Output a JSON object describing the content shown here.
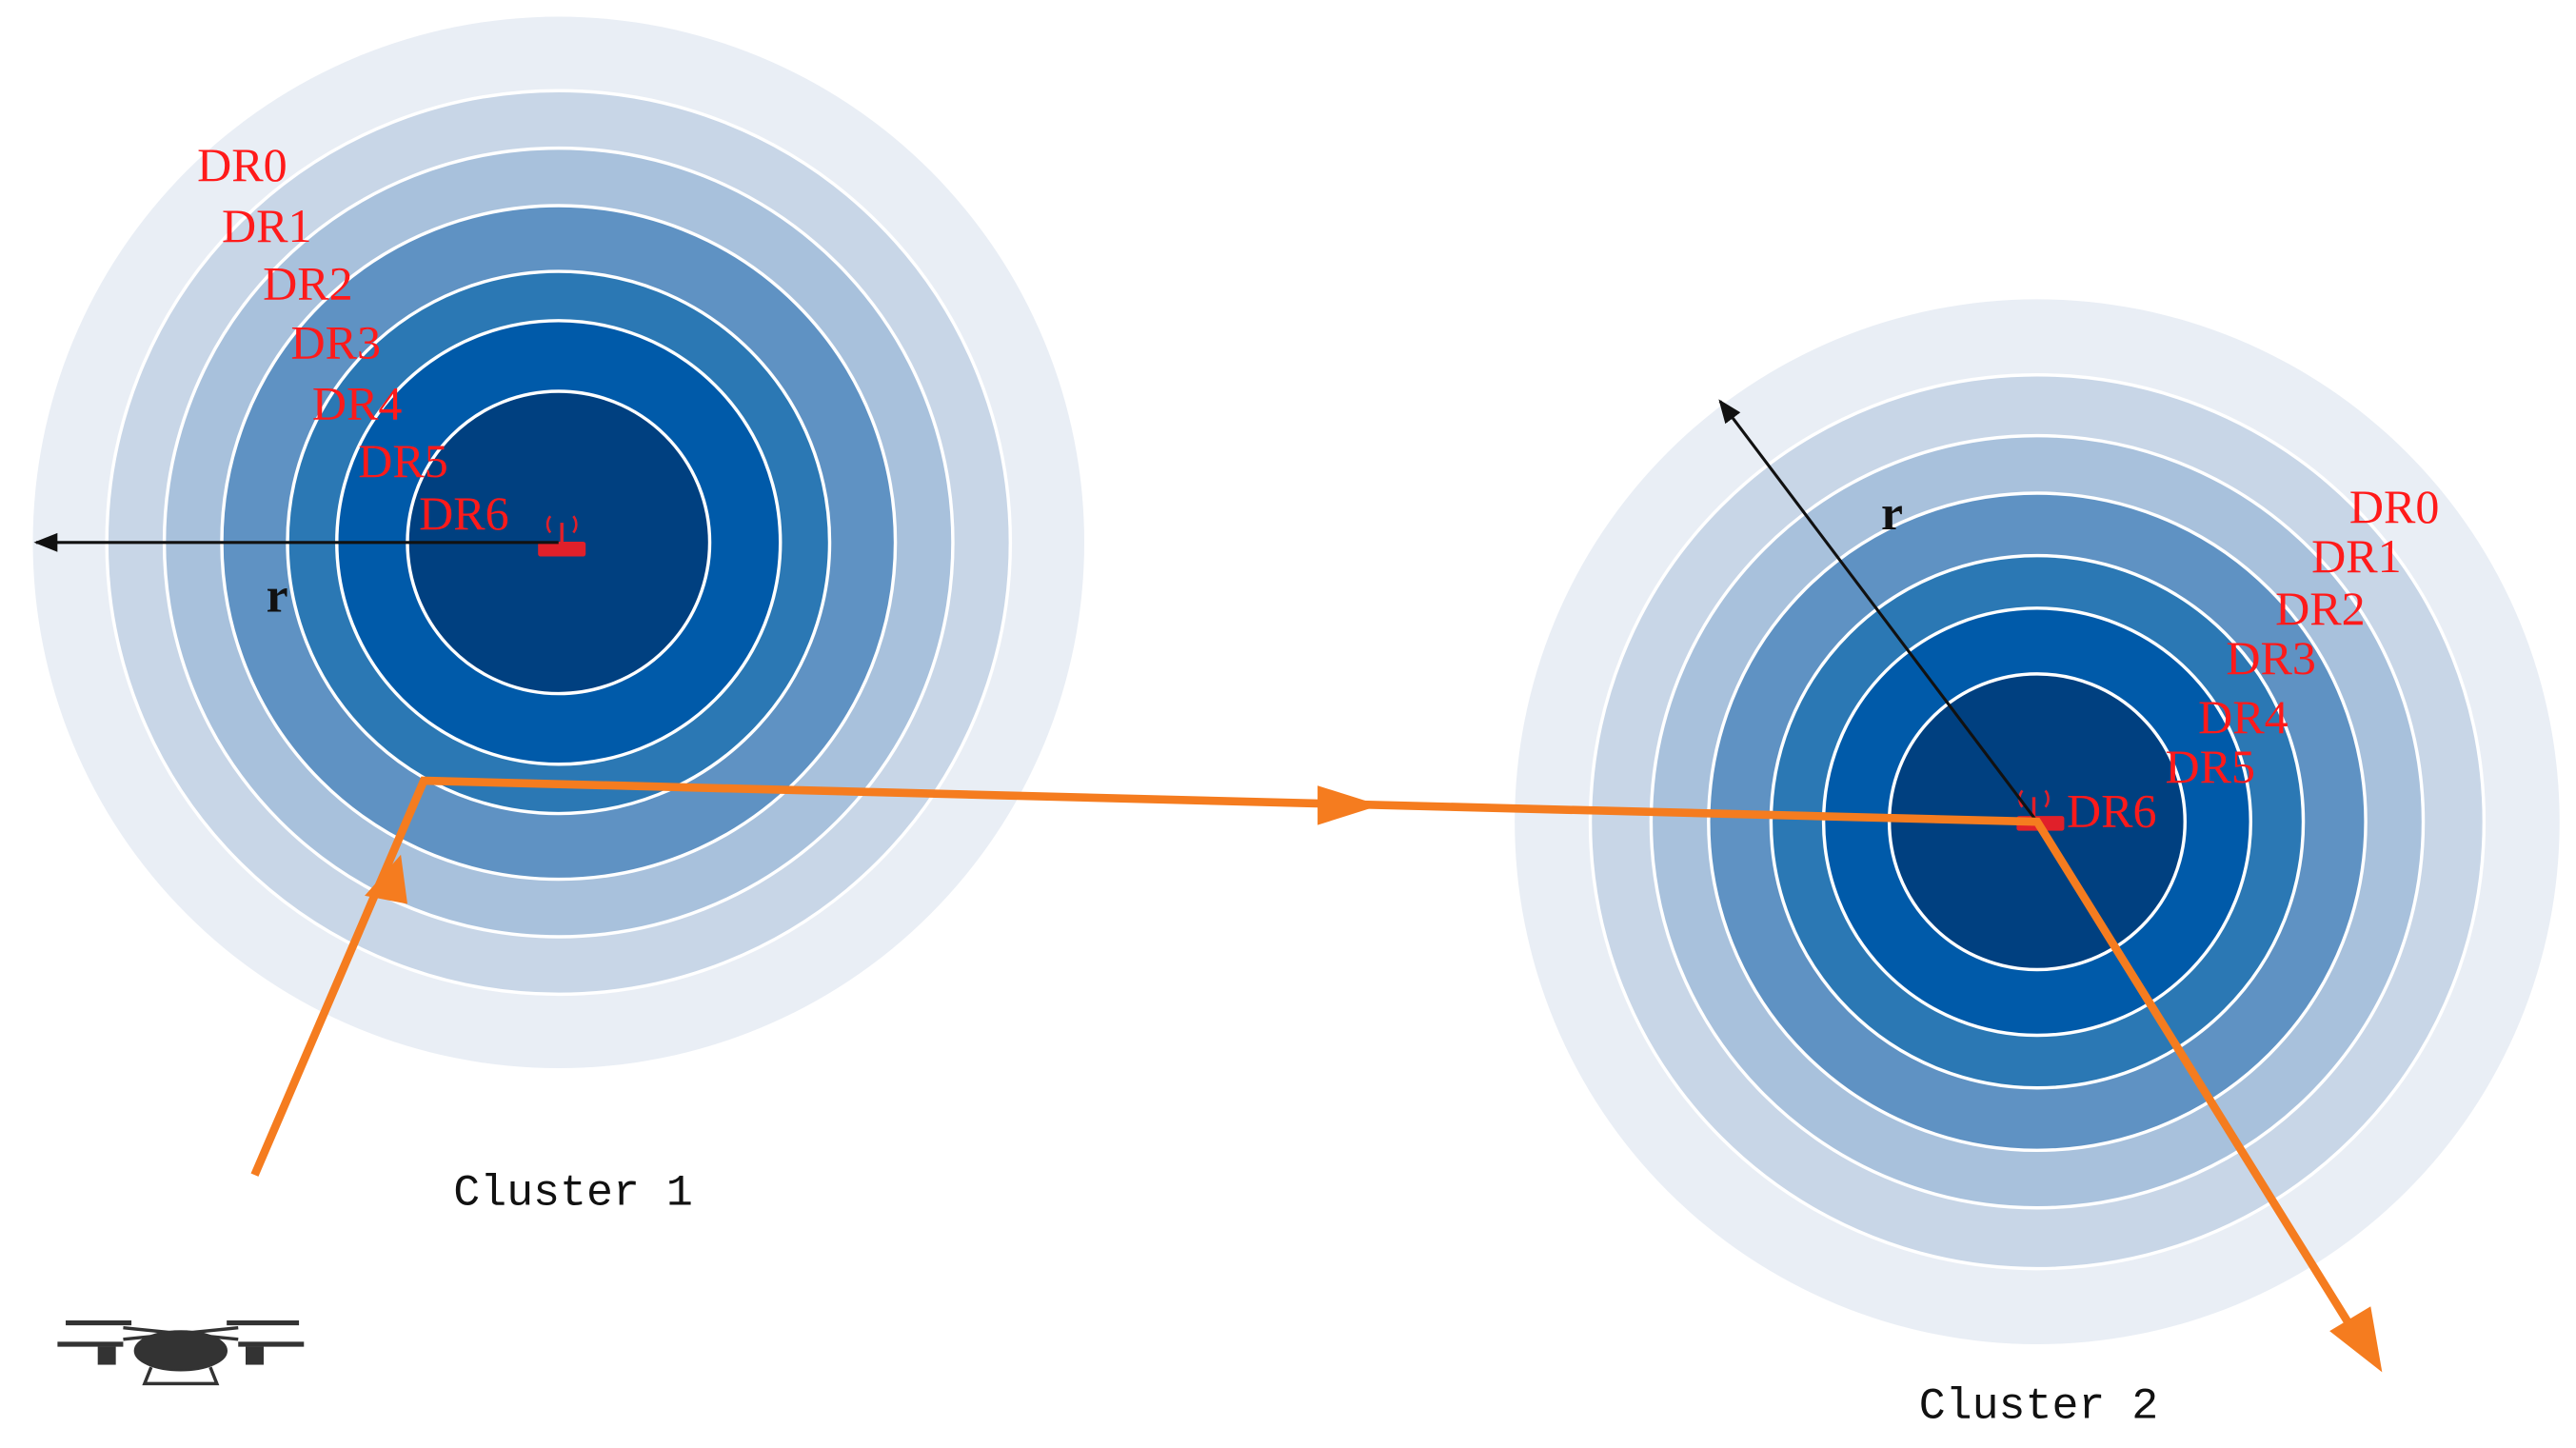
{
  "clusters": [
    {
      "label": "Cluster 1",
      "radius_label": "r",
      "rings": [
        "DR0",
        "DR1",
        "DR2",
        "DR3",
        "DR4",
        "DR5",
        "DR6"
      ]
    },
    {
      "label": "Cluster 2",
      "radius_label": "r",
      "rings": [
        "DR0",
        "DR1",
        "DR2",
        "DR3",
        "DR4",
        "DR5",
        "DR6"
      ]
    }
  ]
}
